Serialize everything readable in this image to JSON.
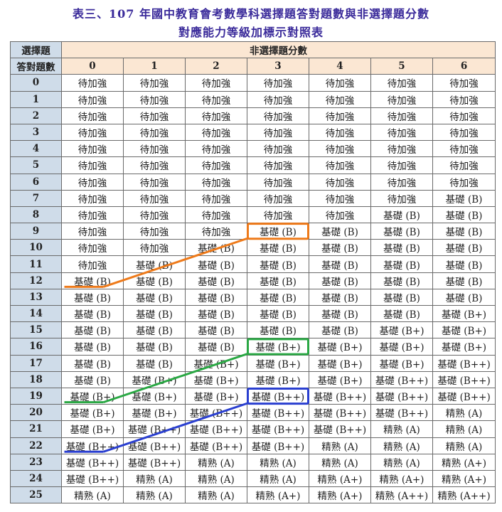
{
  "title_line1": "表三、107 年國中教育會考數學科選擇題答對題數與非選擇題分數",
  "title_line2": "對應能力等級加標示對照表",
  "corner_top": "選擇題",
  "corner_bottom": "答對題數",
  "nonchoice_header": "非選擇題分數",
  "score_columns": [
    "0",
    "1",
    "2",
    "3",
    "4",
    "5",
    "6"
  ],
  "rows": [
    {
      "label": "0",
      "cells": [
        "待加強",
        "待加強",
        "待加強",
        "待加強",
        "待加強",
        "待加強",
        "待加強"
      ]
    },
    {
      "label": "1",
      "cells": [
        "待加強",
        "待加強",
        "待加強",
        "待加強",
        "待加強",
        "待加強",
        "待加強"
      ]
    },
    {
      "label": "2",
      "cells": [
        "待加強",
        "待加強",
        "待加強",
        "待加強",
        "待加強",
        "待加強",
        "待加強"
      ]
    },
    {
      "label": "3",
      "cells": [
        "待加強",
        "待加強",
        "待加強",
        "待加強",
        "待加強",
        "待加強",
        "待加強"
      ]
    },
    {
      "label": "4",
      "cells": [
        "待加強",
        "待加強",
        "待加強",
        "待加強",
        "待加強",
        "待加強",
        "待加強"
      ]
    },
    {
      "label": "5",
      "cells": [
        "待加強",
        "待加強",
        "待加強",
        "待加強",
        "待加強",
        "待加強",
        "待加強"
      ]
    },
    {
      "label": "6",
      "cells": [
        "待加強",
        "待加強",
        "待加強",
        "待加強",
        "待加強",
        "待加強",
        "待加強"
      ]
    },
    {
      "label": "7",
      "cells": [
        "待加強",
        "待加強",
        "待加強",
        "待加強",
        "待加強",
        "待加強",
        "基礎 (B)"
      ]
    },
    {
      "label": "8",
      "cells": [
        "待加強",
        "待加強",
        "待加強",
        "待加強",
        "待加強",
        "基礎 (B)",
        "基礎 (B)"
      ]
    },
    {
      "label": "9",
      "cells": [
        "待加強",
        "待加強",
        "待加強",
        "基礎 (B)",
        "基礎 (B)",
        "基礎 (B)",
        "基礎 (B)"
      ]
    },
    {
      "label": "10",
      "cells": [
        "待加強",
        "待加強",
        "基礎 (B)",
        "基礎 (B)",
        "基礎 (B)",
        "基礎 (B)",
        "基礎 (B)"
      ]
    },
    {
      "label": "11",
      "cells": [
        "待加強",
        "基礎 (B)",
        "基礎 (B)",
        "基礎 (B)",
        "基礎 (B)",
        "基礎 (B)",
        "基礎 (B)"
      ]
    },
    {
      "label": "12",
      "cells": [
        "基礎 (B)",
        "基礎 (B)",
        "基礎 (B)",
        "基礎 (B)",
        "基礎 (B)",
        "基礎 (B)",
        "基礎 (B)"
      ]
    },
    {
      "label": "13",
      "cells": [
        "基礎 (B)",
        "基礎 (B)",
        "基礎 (B)",
        "基礎 (B)",
        "基礎 (B)",
        "基礎 (B)",
        "基礎 (B)"
      ]
    },
    {
      "label": "14",
      "cells": [
        "基礎 (B)",
        "基礎 (B)",
        "基礎 (B)",
        "基礎 (B)",
        "基礎 (B)",
        "基礎 (B)",
        "基礎 (B+)"
      ]
    },
    {
      "label": "15",
      "cells": [
        "基礎 (B)",
        "基礎 (B)",
        "基礎 (B)",
        "基礎 (B)",
        "基礎 (B)",
        "基礎 (B+)",
        "基礎 (B+)"
      ]
    },
    {
      "label": "16",
      "cells": [
        "基礎 (B)",
        "基礎 (B)",
        "基礎 (B)",
        "基礎 (B+)",
        "基礎 (B+)",
        "基礎 (B+)",
        "基礎 (B+)"
      ]
    },
    {
      "label": "17",
      "cells": [
        "基礎 (B)",
        "基礎 (B)",
        "基礎 (B+)",
        "基礎 (B+)",
        "基礎 (B+)",
        "基礎 (B+)",
        "基礎 (B++)"
      ]
    },
    {
      "label": "18",
      "cells": [
        "基礎 (B)",
        "基礎 (B+)",
        "基礎 (B+)",
        "基礎 (B+)",
        "基礎 (B+)",
        "基礎 (B++)",
        "基礎 (B++)"
      ]
    },
    {
      "label": "19",
      "cells": [
        "基礎 (B+)",
        "基礎 (B+)",
        "基礎 (B+)",
        "基礎 (B++)",
        "基礎 (B++)",
        "基礎 (B++)",
        "基礎 (B++)"
      ]
    },
    {
      "label": "20",
      "cells": [
        "基礎 (B+)",
        "基礎 (B+)",
        "基礎 (B++)",
        "基礎 (B++)",
        "基礎 (B++)",
        "基礎 (B++)",
        "精熟 (A)"
      ]
    },
    {
      "label": "21",
      "cells": [
        "基礎 (B+)",
        "基礎 (B++)",
        "基礎 (B++)",
        "基礎 (B++)",
        "基礎 (B++)",
        "精熟 (A)",
        "精熟 (A)"
      ]
    },
    {
      "label": "22",
      "cells": [
        "基礎 (B++)",
        "基礎 (B++)",
        "基礎 (B++)",
        "基礎 (B++)",
        "精熟 (A)",
        "精熟 (A)",
        "精熟 (A)"
      ]
    },
    {
      "label": "23",
      "cells": [
        "基礎 (B++)",
        "基礎 (B++)",
        "精熟 (A)",
        "精熟 (A)",
        "精熟 (A)",
        "精熟 (A)",
        "精熟 (A+)"
      ]
    },
    {
      "label": "24",
      "cells": [
        "基礎 (B++)",
        "精熟 (A)",
        "精熟 (A)",
        "精熟 (A)",
        "精熟 (A+)",
        "精熟 (A+)",
        "精熟 (A+)"
      ]
    },
    {
      "label": "25",
      "cells": [
        "精熟 (A)",
        "精熟 (A)",
        "精熟 (A)",
        "精熟 (A+)",
        "精熟 (A+)",
        "精熟 (A++)",
        "精熟 (A++)"
      ]
    }
  ],
  "annotation_colors": {
    "orange": "#ee7a1a",
    "green": "#2aa844",
    "blue": "#2a3fd0"
  }
}
